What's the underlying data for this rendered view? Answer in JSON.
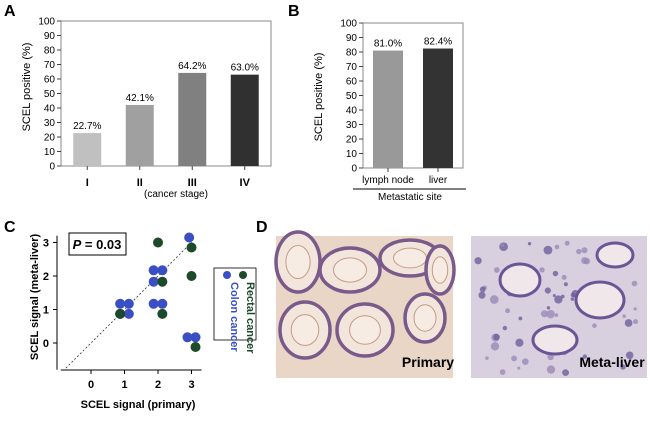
{
  "panels": {
    "a": "A",
    "b": "B",
    "c": "C",
    "d": "D"
  },
  "chart_data": [
    {
      "type": "bar",
      "panel": "A",
      "categories": [
        "I",
        "II",
        "III",
        "IV"
      ],
      "values": [
        22.7,
        42.1,
        64.2,
        63.0
      ],
      "value_labels": [
        "22.7%",
        "42.1%",
        "64.2%",
        "63.0%"
      ],
      "bar_colors": [
        "#c0c0c0",
        "#a0a0a0",
        "#808080",
        "#303030"
      ],
      "xlabel": "(cancer stage)",
      "ylabel": "SCEL positive (%)",
      "ylim": [
        0,
        100
      ],
      "yticks": [
        0,
        10,
        20,
        30,
        40,
        50,
        60,
        70,
        80,
        90,
        100
      ],
      "grid": false
    },
    {
      "type": "bar",
      "panel": "B",
      "categories": [
        "lymph node",
        "liver"
      ],
      "values": [
        81.0,
        82.4
      ],
      "value_labels": [
        "81.0%",
        "82.4%"
      ],
      "bar_colors": [
        "#999999",
        "#333333"
      ],
      "xlabel": "Metastatic site",
      "ylabel": "SCEL positive (%)",
      "ylim": [
        0,
        100
      ],
      "yticks": [
        0,
        10,
        20,
        30,
        40,
        50,
        60,
        70,
        80,
        90,
        100
      ],
      "grid": false
    },
    {
      "type": "scatter",
      "panel": "C",
      "annotation": "P = 0.03",
      "annotation_p": "P",
      "annotation_rest": " = 0.03",
      "xlabel": "SCEL signal (primary)",
      "ylabel": "SCEL signal (meta-liver)",
      "xlim": [
        -0.9,
        3.3
      ],
      "ylim": [
        -0.8,
        3.2
      ],
      "xticks": [
        0,
        1,
        2,
        3
      ],
      "yticks": [
        0,
        1,
        2,
        3
      ],
      "reference_line": "diagonal y = x",
      "legend_position": "right",
      "series": [
        {
          "name": "Colon cancer",
          "color": "#3b4fc4",
          "points": [
            [
              0.87,
              1.17
            ],
            [
              1.13,
              1.17
            ],
            [
              0.87,
              0.87
            ],
            [
              1.13,
              0.87
            ],
            [
              1.87,
              2.17
            ],
            [
              2.13,
              2.17
            ],
            [
              1.87,
              1.83
            ],
            [
              1.87,
              1.17
            ],
            [
              2.13,
              1.17
            ],
            [
              2.93,
              3.15
            ],
            [
              2.88,
              0.17
            ],
            [
              3.12,
              0.17
            ]
          ]
        },
        {
          "name": "Rectal cancer",
          "color": "#1c4a2a",
          "points": [
            [
              0.87,
              0.87
            ],
            [
              2.0,
              3.0
            ],
            [
              2.13,
              1.83
            ],
            [
              2.13,
              0.87
            ],
            [
              3.0,
              2.85
            ],
            [
              3.0,
              2.0
            ],
            [
              3.12,
              -0.12
            ]
          ]
        }
      ]
    }
  ],
  "micrographs": [
    {
      "label": "Primary"
    },
    {
      "label": "Meta-liver"
    }
  ]
}
